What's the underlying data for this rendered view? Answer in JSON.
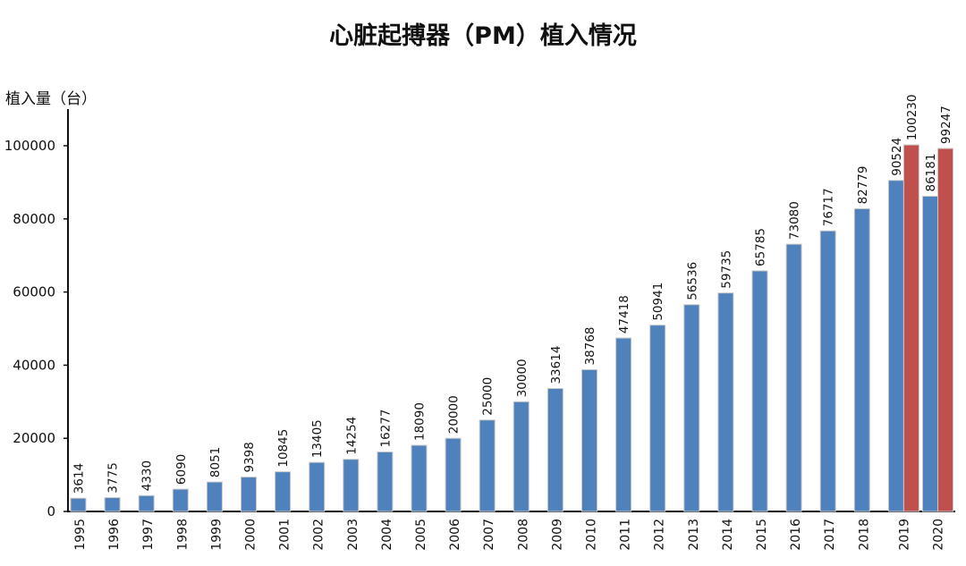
{
  "chart_data": {
    "type": "bar",
    "title": "心脏起搏器（PM）植入情况",
    "xlabel": "",
    "ylabel": "植入量（台）",
    "ylim": [
      0,
      110000
    ],
    "yticks": [
      0,
      20000,
      40000,
      60000,
      80000,
      100000
    ],
    "grid": false,
    "legend": "none",
    "categories": [
      "1995",
      "1996",
      "1997",
      "1998",
      "1999",
      "2000",
      "2001",
      "2002",
      "2003",
      "2004",
      "2005",
      "2006",
      "2007",
      "2008",
      "2009",
      "2010",
      "2011",
      "2012",
      "2013",
      "2014",
      "2015",
      "2016",
      "2017",
      "2018",
      "2019",
      "2020"
    ],
    "series": [
      {
        "color": "#4f81bd",
        "values": [
          3614,
          3775,
          4330,
          6090,
          8051,
          9398,
          10845,
          13405,
          14254,
          16277,
          18090,
          20000,
          25000,
          30000,
          33614,
          38768,
          47418,
          50941,
          56536,
          59735,
          65785,
          73080,
          76717,
          82779,
          90524,
          86181
        ]
      },
      {
        "color": "#c0504d",
        "values": [
          null,
          null,
          null,
          null,
          null,
          null,
          null,
          null,
          null,
          null,
          null,
          null,
          null,
          null,
          null,
          null,
          null,
          null,
          null,
          null,
          null,
          null,
          null,
          null,
          100230,
          99247
        ]
      }
    ]
  }
}
